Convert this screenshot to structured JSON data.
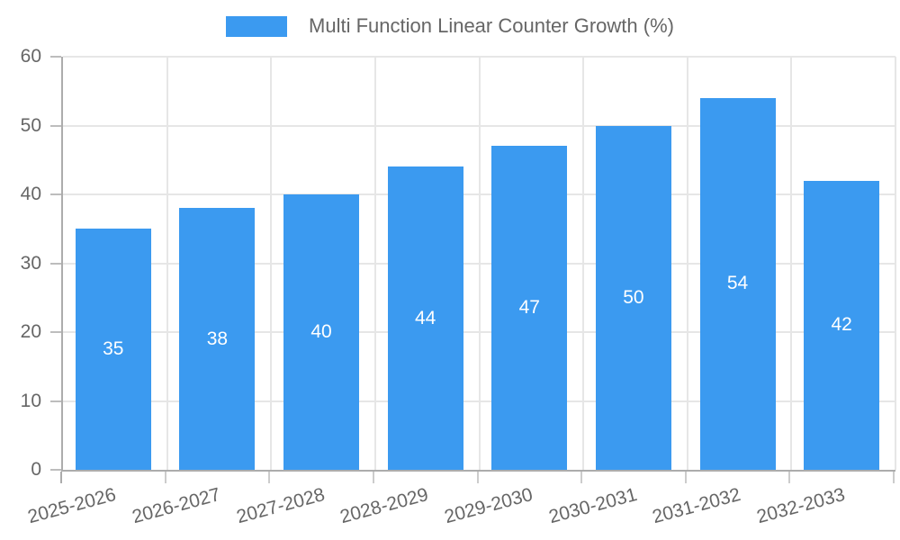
{
  "legend": {
    "label": "Multi Function Linear Counter Growth (%)"
  },
  "colors": {
    "bar": "#3b9af0",
    "value_label": "#ffffff",
    "axis_line": "#acacac",
    "gridline": "#e6e6e6",
    "tick_text": "#666666"
  },
  "chart_data": {
    "type": "bar",
    "title": "Multi Function Linear Counter Growth (%)",
    "categories": [
      "2025-2026",
      "2026-2027",
      "2027-2028",
      "2028-2029",
      "2029-2030",
      "2030-2031",
      "2031-2032",
      "2032-2033"
    ],
    "values": [
      35,
      38,
      40,
      44,
      47,
      50,
      54,
      42
    ],
    "xlabel": "",
    "ylabel": "",
    "ylim": [
      0,
      60
    ],
    "ytick_step": 10,
    "ytick_labels": [
      "0",
      "10",
      "20",
      "30",
      "40",
      "50",
      "60"
    ],
    "grid": true,
    "legend_position": "top",
    "value_labels_shown": true,
    "x_label_rotation_deg": -15
  }
}
